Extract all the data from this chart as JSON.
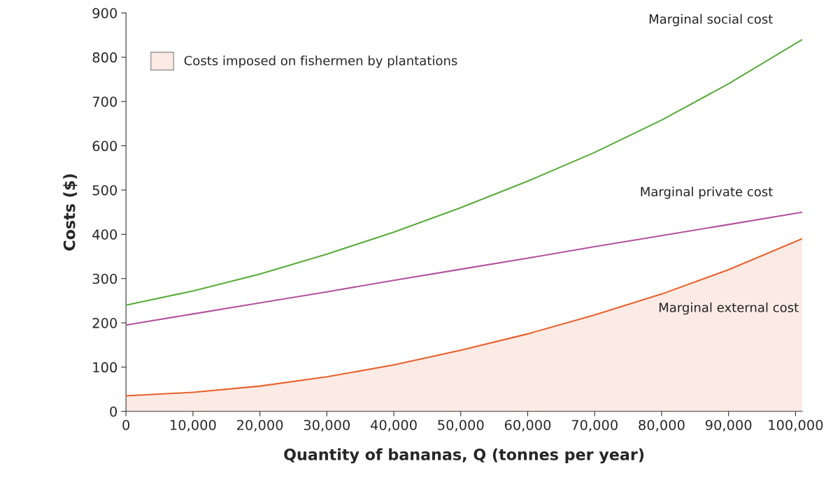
{
  "chart_data": {
    "type": "line",
    "xlabel": "Quantity of bananas, Q (tonnes per year)",
    "ylabel": "Costs ($)",
    "x": [
      0,
      10000,
      20000,
      30000,
      40000,
      50000,
      60000,
      70000,
      80000,
      90000,
      101000
    ],
    "series": [
      {
        "type": "area",
        "name": "Costs imposed on fishermen by plantations",
        "color": "#e8602c",
        "values": [
          35,
          43,
          57,
          78,
          105,
          138,
          175,
          218,
          265,
          320,
          390
        ]
      },
      {
        "name": "Marginal social cost",
        "color": "#5aab3c",
        "values": [
          240,
          272,
          310,
          355,
          405,
          460,
          520,
          585,
          658,
          740,
          840
        ]
      },
      {
        "name": "Marginal private cost",
        "color": "#b3539e",
        "values": [
          195,
          220,
          245,
          270,
          296,
          321,
          346,
          372,
          397,
          422,
          450
        ]
      }
    ],
    "annotations": [
      {
        "text": "Marginal external cost",
        "x": 90000,
        "y": 320
      }
    ],
    "xlim": [
      0,
      101000
    ],
    "xticks": [
      {
        "value": 0,
        "label": "0"
      },
      {
        "value": 10000,
        "label": "10,000"
      },
      {
        "value": 20000,
        "label": "20,000"
      },
      {
        "value": 30000,
        "label": "30,000"
      },
      {
        "value": 40000,
        "label": "40,000"
      },
      {
        "value": 50000,
        "label": "50,000"
      },
      {
        "value": 60000,
        "label": "60,000"
      },
      {
        "value": 70000,
        "label": "70,000"
      },
      {
        "value": 80000,
        "label": "80,000"
      },
      {
        "value": 90000,
        "label": "90,000"
      },
      {
        "value": 100000,
        "label": "100,000"
      }
    ],
    "ylim": [
      0,
      900
    ],
    "yticks": [
      0,
      100,
      200,
      300,
      400,
      500,
      600,
      700,
      800,
      900
    ],
    "legend": "top left",
    "grid": false
  }
}
